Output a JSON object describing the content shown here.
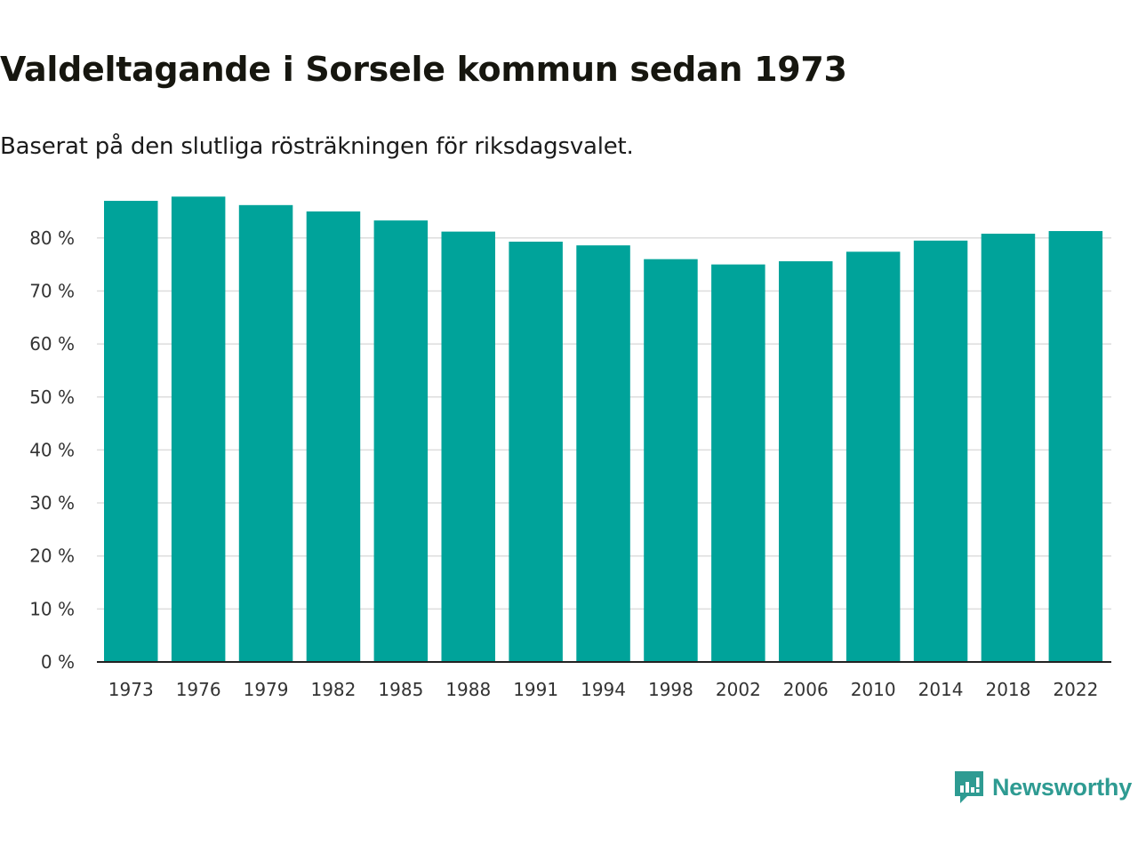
{
  "title": "Valdeltagande i Sorsele kommun sedan 1973",
  "subtitle": "Baserat på den slutliga rösträkningen för riksdagsvalet.",
  "brand": {
    "name": "Newsworthy",
    "icon": "newsworthy-logo-icon",
    "color": "#2e9b92"
  },
  "colors": {
    "bar": "#00a39a",
    "grid": "#dddddd",
    "axis": "#222222"
  },
  "chart_data": {
    "type": "bar",
    "title": "Valdeltagande i Sorsele kommun sedan 1973",
    "xlabel": "",
    "ylabel": "",
    "categories": [
      "1973",
      "1976",
      "1979",
      "1982",
      "1985",
      "1988",
      "1991",
      "1994",
      "1998",
      "2002",
      "2006",
      "2010",
      "2014",
      "2018",
      "2022"
    ],
    "values": [
      87.0,
      87.8,
      86.2,
      85.0,
      83.3,
      81.2,
      79.3,
      78.6,
      76.0,
      75.0,
      75.6,
      77.4,
      79.5,
      80.8,
      81.3
    ],
    "ylim": [
      0,
      88
    ],
    "yticks": [
      0,
      10,
      20,
      30,
      40,
      50,
      60,
      70,
      80
    ],
    "ytick_labels": [
      "0 %",
      "10 %",
      "20 %",
      "30 %",
      "40 %",
      "50 %",
      "60 %",
      "70 %",
      "80 %"
    ],
    "grid": true,
    "legend": "none"
  }
}
